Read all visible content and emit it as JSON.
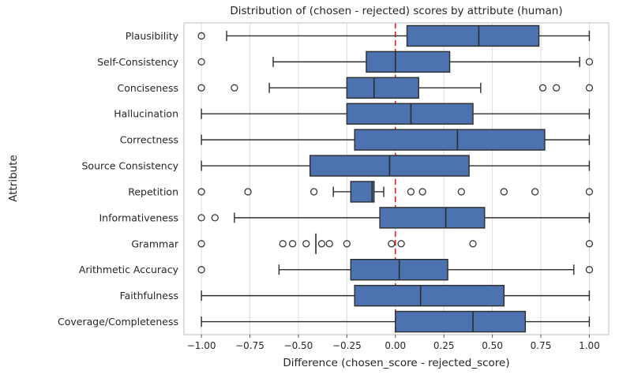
{
  "title": "Distribution of (chosen - rejected) scores by attribute (human)",
  "y_axis": {
    "label": "Attribute"
  },
  "x_axis": {
    "label": "Difference (chosen_score - rejected_score)",
    "tick_labels": [
      "−1.00",
      "−0.75",
      "−0.50",
      "−0.25",
      "0.00",
      "0.25",
      "0.50",
      "0.75",
      "1.00"
    ],
    "tick_values": [
      -1.0,
      -0.75,
      -0.5,
      -0.25,
      0.0,
      0.25,
      0.5,
      0.75,
      1.0
    ]
  },
  "reference_line": {
    "value": 0.0,
    "style": "dashed",
    "color": "#e02020"
  },
  "style": {
    "box_fill": "#4C72B0",
    "box_edge": "#2d2d2d",
    "median_color": "#2d2d2d",
    "whisker_color": "#2d2d2d",
    "outlier_stroke": "#3a3a3a",
    "grid_color": "#dcdcdc",
    "spine_color": "#c9c9c9",
    "tick_color": "#555555",
    "text_color": "#262626"
  },
  "chart_data": {
    "type": "boxplot",
    "orientation": "horizontal",
    "title": "Distribution of (chosen - rejected) scores by attribute (human)",
    "xlabel": "Difference (chosen_score - rejected_score)",
    "ylabel": "Attribute",
    "xlim": [
      -1.09,
      1.1
    ],
    "grid": true,
    "categories": [
      "Plausibility",
      "Self-Consistency",
      "Conciseness",
      "Hallucination",
      "Correctness",
      "Source Consistency",
      "Repetition",
      "Informativeness",
      "Grammar",
      "Arithmetic Accuracy",
      "Faithfulness",
      "Coverage/Completeness"
    ],
    "boxes": [
      {
        "category": "Plausibility",
        "whisker_low": -0.87,
        "q1": 0.06,
        "median": 0.43,
        "q3": 0.74,
        "whisker_high": 1.0,
        "outliers": [
          -1.0
        ]
      },
      {
        "category": "Self-Consistency",
        "whisker_low": -0.63,
        "q1": -0.15,
        "median": 0.0,
        "q3": 0.28,
        "whisker_high": 0.95,
        "outliers": [
          -1.0,
          1.0
        ]
      },
      {
        "category": "Conciseness",
        "whisker_low": -0.65,
        "q1": -0.25,
        "median": -0.11,
        "q3": 0.12,
        "whisker_high": 0.44,
        "outliers": [
          -1.0,
          -0.83,
          0.76,
          0.83,
          1.0
        ]
      },
      {
        "category": "Hallucination",
        "whisker_low": -1.0,
        "q1": -0.25,
        "median": 0.08,
        "q3": 0.4,
        "whisker_high": 1.0,
        "outliers": []
      },
      {
        "category": "Correctness",
        "whisker_low": -1.0,
        "q1": -0.21,
        "median": 0.32,
        "q3": 0.77,
        "whisker_high": 1.0,
        "outliers": []
      },
      {
        "category": "Source Consistency",
        "whisker_low": -1.0,
        "q1": -0.44,
        "median": -0.03,
        "q3": 0.38,
        "whisker_high": 1.0,
        "outliers": []
      },
      {
        "category": "Repetition",
        "whisker_low": -0.32,
        "q1": -0.23,
        "median": -0.12,
        "q3": -0.11,
        "whisker_high": -0.06,
        "outliers": [
          -1.0,
          -0.76,
          -0.42,
          0.08,
          0.14,
          0.34,
          0.56,
          0.72,
          1.0
        ]
      },
      {
        "category": "Informativeness",
        "whisker_low": -0.83,
        "q1": -0.08,
        "median": 0.26,
        "q3": 0.46,
        "whisker_high": 1.0,
        "outliers": [
          -1.0,
          -0.93
        ]
      },
      {
        "category": "Grammar",
        "whisker_low": -0.41,
        "q1": -0.41,
        "median": -0.41,
        "q3": -0.41,
        "whisker_high": -0.41,
        "outliers": [
          -1.0,
          -0.58,
          -0.53,
          -0.46,
          -0.38,
          -0.34,
          -0.25,
          -0.02,
          0.03,
          0.4,
          1.0
        ]
      },
      {
        "category": "Arithmetic Accuracy",
        "whisker_low": -0.6,
        "q1": -0.23,
        "median": 0.02,
        "q3": 0.27,
        "whisker_high": 0.92,
        "outliers": [
          -1.0,
          1.0
        ]
      },
      {
        "category": "Faithfulness",
        "whisker_low": -1.0,
        "q1": -0.21,
        "median": 0.13,
        "q3": 0.56,
        "whisker_high": 1.0,
        "outliers": []
      },
      {
        "category": "Coverage/Completeness",
        "whisker_low": -1.0,
        "q1": 0.0,
        "median": 0.4,
        "q3": 0.67,
        "whisker_high": 1.0,
        "outliers": []
      }
    ]
  }
}
